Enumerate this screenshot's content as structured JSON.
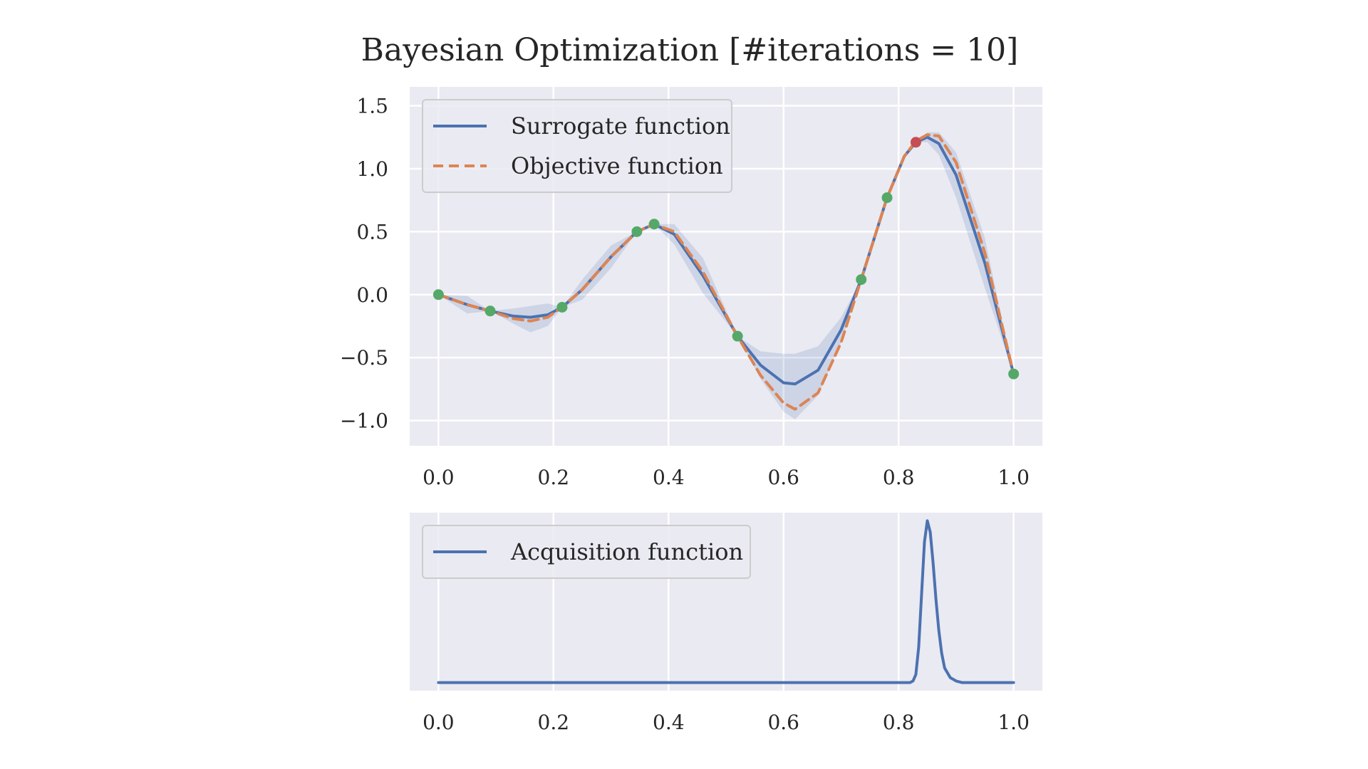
{
  "title": "Bayesian Optimization [#iterations = 10]",
  "colors": {
    "background": "#eaeaf2",
    "grid": "#ffffff",
    "surrogate": "#4c72b0",
    "objective": "#dd8452",
    "band": "#4c72b0",
    "sample_point": "#55a868",
    "next_point": "#c44e52"
  },
  "chart_data": [
    {
      "type": "line",
      "panel": "top",
      "xlim": [
        -0.05,
        1.05
      ],
      "ylim": [
        -1.2,
        1.65
      ],
      "grid": true,
      "legend_position": "top-left",
      "xticks": [
        0.0,
        0.2,
        0.4,
        0.6,
        0.8,
        1.0
      ],
      "xtick_labels": [
        "0.0",
        "0.2",
        "0.4",
        "0.6",
        "0.8",
        "1.0"
      ],
      "yticks": [
        1.5,
        1.0,
        0.5,
        0.0,
        -0.5,
        -1.0
      ],
      "ytick_labels": [
        "1.5",
        "1.0",
        "0.5",
        "0.0",
        "−0.5",
        "−1.0"
      ],
      "series": [
        {
          "name": "Surrogate function",
          "style": "solid",
          "x": [
            0.0,
            0.05,
            0.09,
            0.13,
            0.16,
            0.19,
            0.215,
            0.25,
            0.3,
            0.345,
            0.375,
            0.41,
            0.46,
            0.52,
            0.56,
            0.6,
            0.62,
            0.66,
            0.7,
            0.735,
            0.78,
            0.81,
            0.83,
            0.85,
            0.87,
            0.9,
            0.95,
            1.0
          ],
          "y": [
            0.0,
            -0.08,
            -0.13,
            -0.17,
            -0.18,
            -0.16,
            -0.1,
            0.04,
            0.3,
            0.5,
            0.56,
            0.48,
            0.15,
            -0.33,
            -0.56,
            -0.7,
            -0.71,
            -0.6,
            -0.28,
            0.12,
            0.77,
            1.1,
            1.21,
            1.25,
            1.2,
            0.95,
            0.25,
            -0.63
          ]
        },
        {
          "name": "Objective function",
          "style": "dashed",
          "x": [
            0.0,
            0.05,
            0.09,
            0.13,
            0.16,
            0.19,
            0.215,
            0.25,
            0.3,
            0.345,
            0.375,
            0.41,
            0.46,
            0.52,
            0.56,
            0.6,
            0.62,
            0.66,
            0.7,
            0.735,
            0.78,
            0.81,
            0.83,
            0.85,
            0.87,
            0.9,
            0.95,
            1.0
          ],
          "y": [
            0.0,
            -0.08,
            -0.13,
            -0.19,
            -0.21,
            -0.18,
            -0.1,
            0.04,
            0.3,
            0.5,
            0.56,
            0.5,
            0.18,
            -0.33,
            -0.64,
            -0.86,
            -0.91,
            -0.78,
            -0.38,
            0.12,
            0.77,
            1.1,
            1.22,
            1.27,
            1.26,
            1.05,
            0.33,
            -0.63
          ]
        }
      ],
      "uncertainty_band": {
        "x": [
          0.0,
          0.05,
          0.09,
          0.13,
          0.16,
          0.19,
          0.215,
          0.25,
          0.3,
          0.345,
          0.375,
          0.41,
          0.46,
          0.52,
          0.56,
          0.6,
          0.62,
          0.66,
          0.7,
          0.735,
          0.78,
          0.81,
          0.83,
          0.85,
          0.87,
          0.9,
          0.95,
          1.0
        ],
        "upper": [
          0.0,
          -0.01,
          -0.13,
          -0.11,
          -0.09,
          -0.07,
          -0.1,
          0.12,
          0.39,
          0.5,
          0.56,
          0.56,
          0.29,
          -0.33,
          -0.45,
          -0.47,
          -0.47,
          -0.41,
          -0.18,
          0.12,
          0.77,
          1.1,
          1.21,
          1.29,
          1.29,
          1.13,
          0.45,
          -0.63
        ],
        "lower": [
          0.0,
          -0.15,
          -0.13,
          -0.23,
          -0.3,
          -0.25,
          -0.1,
          -0.04,
          0.21,
          0.5,
          0.56,
          0.4,
          0.01,
          -0.33,
          -0.67,
          -0.93,
          -0.99,
          -0.8,
          -0.38,
          0.12,
          0.77,
          1.1,
          1.21,
          1.21,
          1.11,
          0.77,
          0.05,
          -0.63
        ]
      },
      "sample_points": {
        "x": [
          0.0,
          0.09,
          0.215,
          0.345,
          0.375,
          0.52,
          0.735,
          0.78,
          1.0
        ],
        "y": [
          0.0,
          -0.13,
          -0.1,
          0.5,
          0.56,
          -0.33,
          0.12,
          0.77,
          -0.63
        ]
      },
      "next_point": {
        "x": 0.83,
        "y": 1.21
      }
    },
    {
      "type": "line",
      "panel": "bottom",
      "xlim": [
        -0.05,
        1.05
      ],
      "ylim": [
        -0.05,
        1.05
      ],
      "grid": true,
      "legend_position": "top-left",
      "xticks": [
        0.0,
        0.2,
        0.4,
        0.6,
        0.8,
        1.0
      ],
      "xtick_labels": [
        "0.0",
        "0.2",
        "0.4",
        "0.6",
        "0.8",
        "1.0"
      ],
      "series": [
        {
          "name": "Acquisition function",
          "style": "solid",
          "x": [
            0.0,
            0.81,
            0.82,
            0.825,
            0.83,
            0.835,
            0.84,
            0.845,
            0.85,
            0.855,
            0.86,
            0.865,
            0.87,
            0.875,
            0.88,
            0.89,
            0.9,
            0.91,
            1.0
          ],
          "y": [
            0.0,
            0.0,
            0.0,
            0.01,
            0.05,
            0.22,
            0.55,
            0.87,
            1.0,
            0.93,
            0.74,
            0.51,
            0.32,
            0.18,
            0.09,
            0.03,
            0.01,
            0.0,
            0.0
          ]
        }
      ]
    }
  ]
}
